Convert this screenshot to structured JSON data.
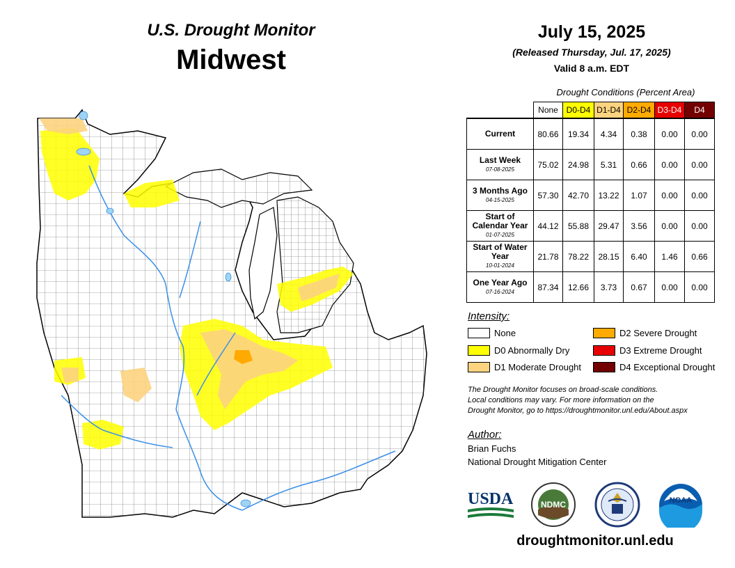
{
  "header": {
    "subtitle": "U.S. Drought Monitor",
    "title": "Midwest",
    "date": "July 15, 2025",
    "released": "(Released Thursday, Jul. 17, 2025)",
    "valid": "Valid 8 a.m. EDT"
  },
  "table": {
    "caption": "Drought Conditions (Percent Area)",
    "columns": [
      {
        "label": "None",
        "color": "#ffffff",
        "text_color": "#000000"
      },
      {
        "label": "D0-D4",
        "color": "#ffff00",
        "text_color": "#000000"
      },
      {
        "label": "D1-D4",
        "color": "#fcd37f",
        "text_color": "#000000"
      },
      {
        "label": "D2-D4",
        "color": "#ffaa00",
        "text_color": "#000000"
      },
      {
        "label": "D3-D4",
        "color": "#e60000",
        "text_color": "#ffffff"
      },
      {
        "label": "D4",
        "color": "#730000",
        "text_color": "#ffffff"
      }
    ],
    "rows": [
      {
        "label": "Current",
        "date": "",
        "values": [
          "80.66",
          "19.34",
          "4.34",
          "0.38",
          "0.00",
          "0.00"
        ]
      },
      {
        "label": "Last Week",
        "date": "07-08-2025",
        "values": [
          "75.02",
          "24.98",
          "5.31",
          "0.66",
          "0.00",
          "0.00"
        ]
      },
      {
        "label": "3 Months Ago",
        "date": "04-15-2025",
        "values": [
          "57.30",
          "42.70",
          "13.22",
          "1.07",
          "0.00",
          "0.00"
        ]
      },
      {
        "label": "Start of Calendar Year",
        "date": "01-07-2025",
        "values": [
          "44.12",
          "55.88",
          "29.47",
          "3.56",
          "0.00",
          "0.00"
        ]
      },
      {
        "label": "Start of Water Year",
        "date": "10-01-2024",
        "values": [
          "21.78",
          "78.22",
          "28.15",
          "6.40",
          "1.46",
          "0.66"
        ]
      },
      {
        "label": "One Year Ago",
        "date": "07-16-2024",
        "values": [
          "87.34",
          "12.66",
          "3.73",
          "0.67",
          "0.00",
          "0.00"
        ]
      }
    ]
  },
  "legend": {
    "title": "Intensity:",
    "items": [
      {
        "label": "None",
        "color": "#ffffff"
      },
      {
        "label": "D0 Abnormally Dry",
        "color": "#ffff00"
      },
      {
        "label": "D1 Moderate Drought",
        "color": "#fcd37f"
      },
      {
        "label": "D2 Severe Drought",
        "color": "#ffaa00"
      },
      {
        "label": "D3 Extreme Drought",
        "color": "#e60000"
      },
      {
        "label": "D4 Exceptional Drought",
        "color": "#730000"
      }
    ]
  },
  "note": {
    "line1": "The Drought Monitor focuses on broad-scale conditions.",
    "line2": "Local conditions may vary. For more information on the",
    "line3": "Drought Monitor, go to https://droughtmonitor.unl.edu/About.aspx"
  },
  "author": {
    "title": "Author:",
    "name": "Brian Fuchs",
    "org": "National Drought Mitigation Center"
  },
  "logos": {
    "usda": "USDA",
    "ndmc": "NDMC",
    "noaa": "NOAA",
    "usda_icon": "usda-logo-icon",
    "ndmc_icon": "ndmc-seal-icon",
    "doc_icon": "commerce-seal-icon",
    "noaa_icon": "noaa-logo-icon"
  },
  "site": "droughtmonitor.unl.edu",
  "map_colors": {
    "water": "#9fd4f2",
    "river": "#3a8fe8",
    "d0": "#ffff00",
    "d1": "#fcd37f",
    "d2": "#ffaa00"
  }
}
